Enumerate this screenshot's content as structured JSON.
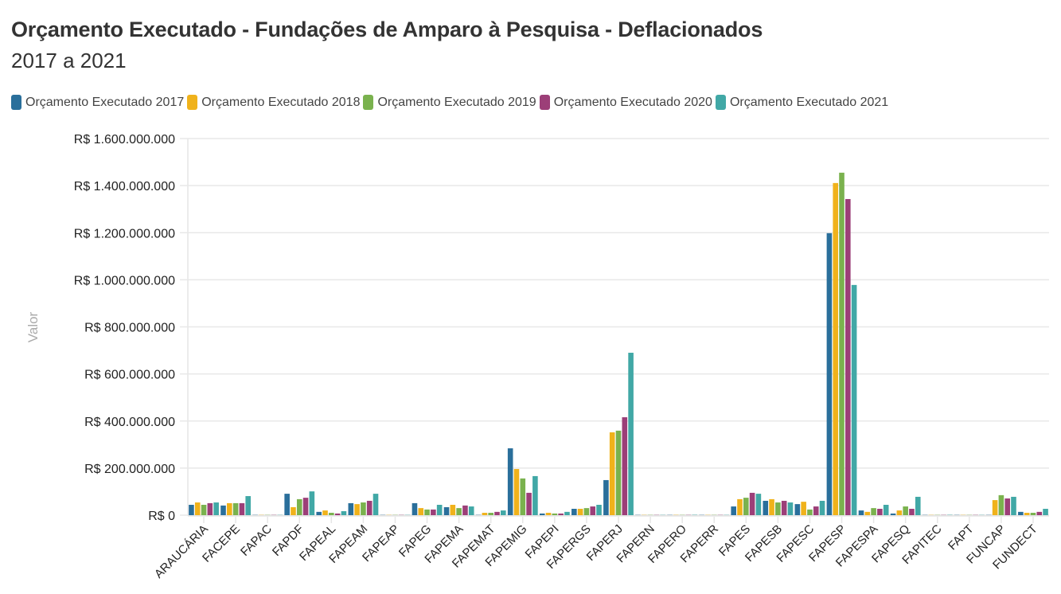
{
  "chart_data": {
    "type": "bar",
    "title": "Orçamento Executado - Fundações de Amparo à Pesquisa - Deflacionados",
    "subtitle": "2017 a 2021",
    "xlabel": "",
    "ylabel": "Valor",
    "ylim": [
      0,
      1600000000
    ],
    "yticks": [
      {
        "value": 0,
        "label": "R$ 0"
      },
      {
        "value": 200000000,
        "label": "R$ 200.000.000"
      },
      {
        "value": 400000000,
        "label": "R$ 400.000.000"
      },
      {
        "value": 600000000,
        "label": "R$ 600.000.000"
      },
      {
        "value": 800000000,
        "label": "R$ 800.000.000"
      },
      {
        "value": 1000000000,
        "label": "R$ 1.000.000.000"
      },
      {
        "value": 1200000000,
        "label": "R$ 1.200.000.000"
      },
      {
        "value": 1400000000,
        "label": "R$ 1.400.000.000"
      },
      {
        "value": 1600000000,
        "label": "R$ 1.600.000.000"
      }
    ],
    "grid": true,
    "legend_position": "top-left",
    "categories": [
      "ARAUCÁRIA",
      "FACEPE",
      "FAPAC",
      "FAPDF",
      "FAPEAL",
      "FAPEAM",
      "FAPEAP",
      "FAPEG",
      "FAPEMA",
      "FAPEMAT",
      "FAPEMIG",
      "FAPEPI",
      "FAPERGS",
      "FAPERJ",
      "FAPERN",
      "FAPERO",
      "FAPERR",
      "FAPES",
      "FAPESB",
      "FAPESC",
      "FAPESP",
      "FAPESPA",
      "FAPESQ",
      "FAPITEC",
      "FAPT",
      "FUNCAP",
      "FUNDECT"
    ],
    "series": [
      {
        "name": "Orçamento Executado 2017",
        "color": "#2a6f9b",
        "values": [
          44000000,
          41000000,
          500000,
          91000000,
          14000000,
          51000000,
          1000000,
          51000000,
          34000000,
          3000000,
          284000000,
          7000000,
          27000000,
          149000000,
          1000000,
          1000000,
          0,
          37000000,
          61000000,
          47000000,
          1198000000,
          20000000,
          7000000,
          2000000,
          0,
          0,
          14000000
        ]
      },
      {
        "name": "Orçamento Executado 2018",
        "color": "#f0b21b",
        "values": [
          54000000,
          51000000,
          500000,
          34000000,
          20000000,
          47000000,
          1000000,
          30000000,
          44000000,
          10000000,
          196000000,
          10000000,
          27000000,
          352000000,
          1000000,
          3000000,
          0,
          68000000,
          68000000,
          57000000,
          1411000000,
          14000000,
          20000000,
          2000000,
          0,
          64000000,
          10000000
        ]
      },
      {
        "name": "Orçamento Executado 2019",
        "color": "#7ab24e",
        "values": [
          44000000,
          51000000,
          500000,
          68000000,
          10000000,
          54000000,
          1000000,
          24000000,
          30000000,
          10000000,
          156000000,
          7000000,
          30000000,
          359000000,
          1000000,
          2000000,
          0,
          74000000,
          54000000,
          24000000,
          1455000000,
          30000000,
          37000000,
          2000000,
          2000000,
          85000000,
          10000000
        ]
      },
      {
        "name": "Orçamento Executado 2020",
        "color": "#9c3f78",
        "values": [
          51000000,
          51000000,
          500000,
          74000000,
          7000000,
          61000000,
          1000000,
          24000000,
          41000000,
          14000000,
          95000000,
          7000000,
          37000000,
          416000000,
          1000000,
          1000000,
          0,
          95000000,
          61000000,
          37000000,
          1343000000,
          27000000,
          27000000,
          2000000,
          2000000,
          71000000,
          14000000
        ]
      },
      {
        "name": "Orçamento Executado 2021",
        "color": "#41a8a6",
        "values": [
          54000000,
          81000000,
          500000,
          101000000,
          17000000,
          91000000,
          1000000,
          44000000,
          37000000,
          20000000,
          166000000,
          14000000,
          44000000,
          690000000,
          1000000,
          4000000,
          0,
          91000000,
          54000000,
          61000000,
          978000000,
          44000000,
          78000000,
          4000000,
          2000000,
          78000000,
          27000000
        ]
      }
    ]
  }
}
